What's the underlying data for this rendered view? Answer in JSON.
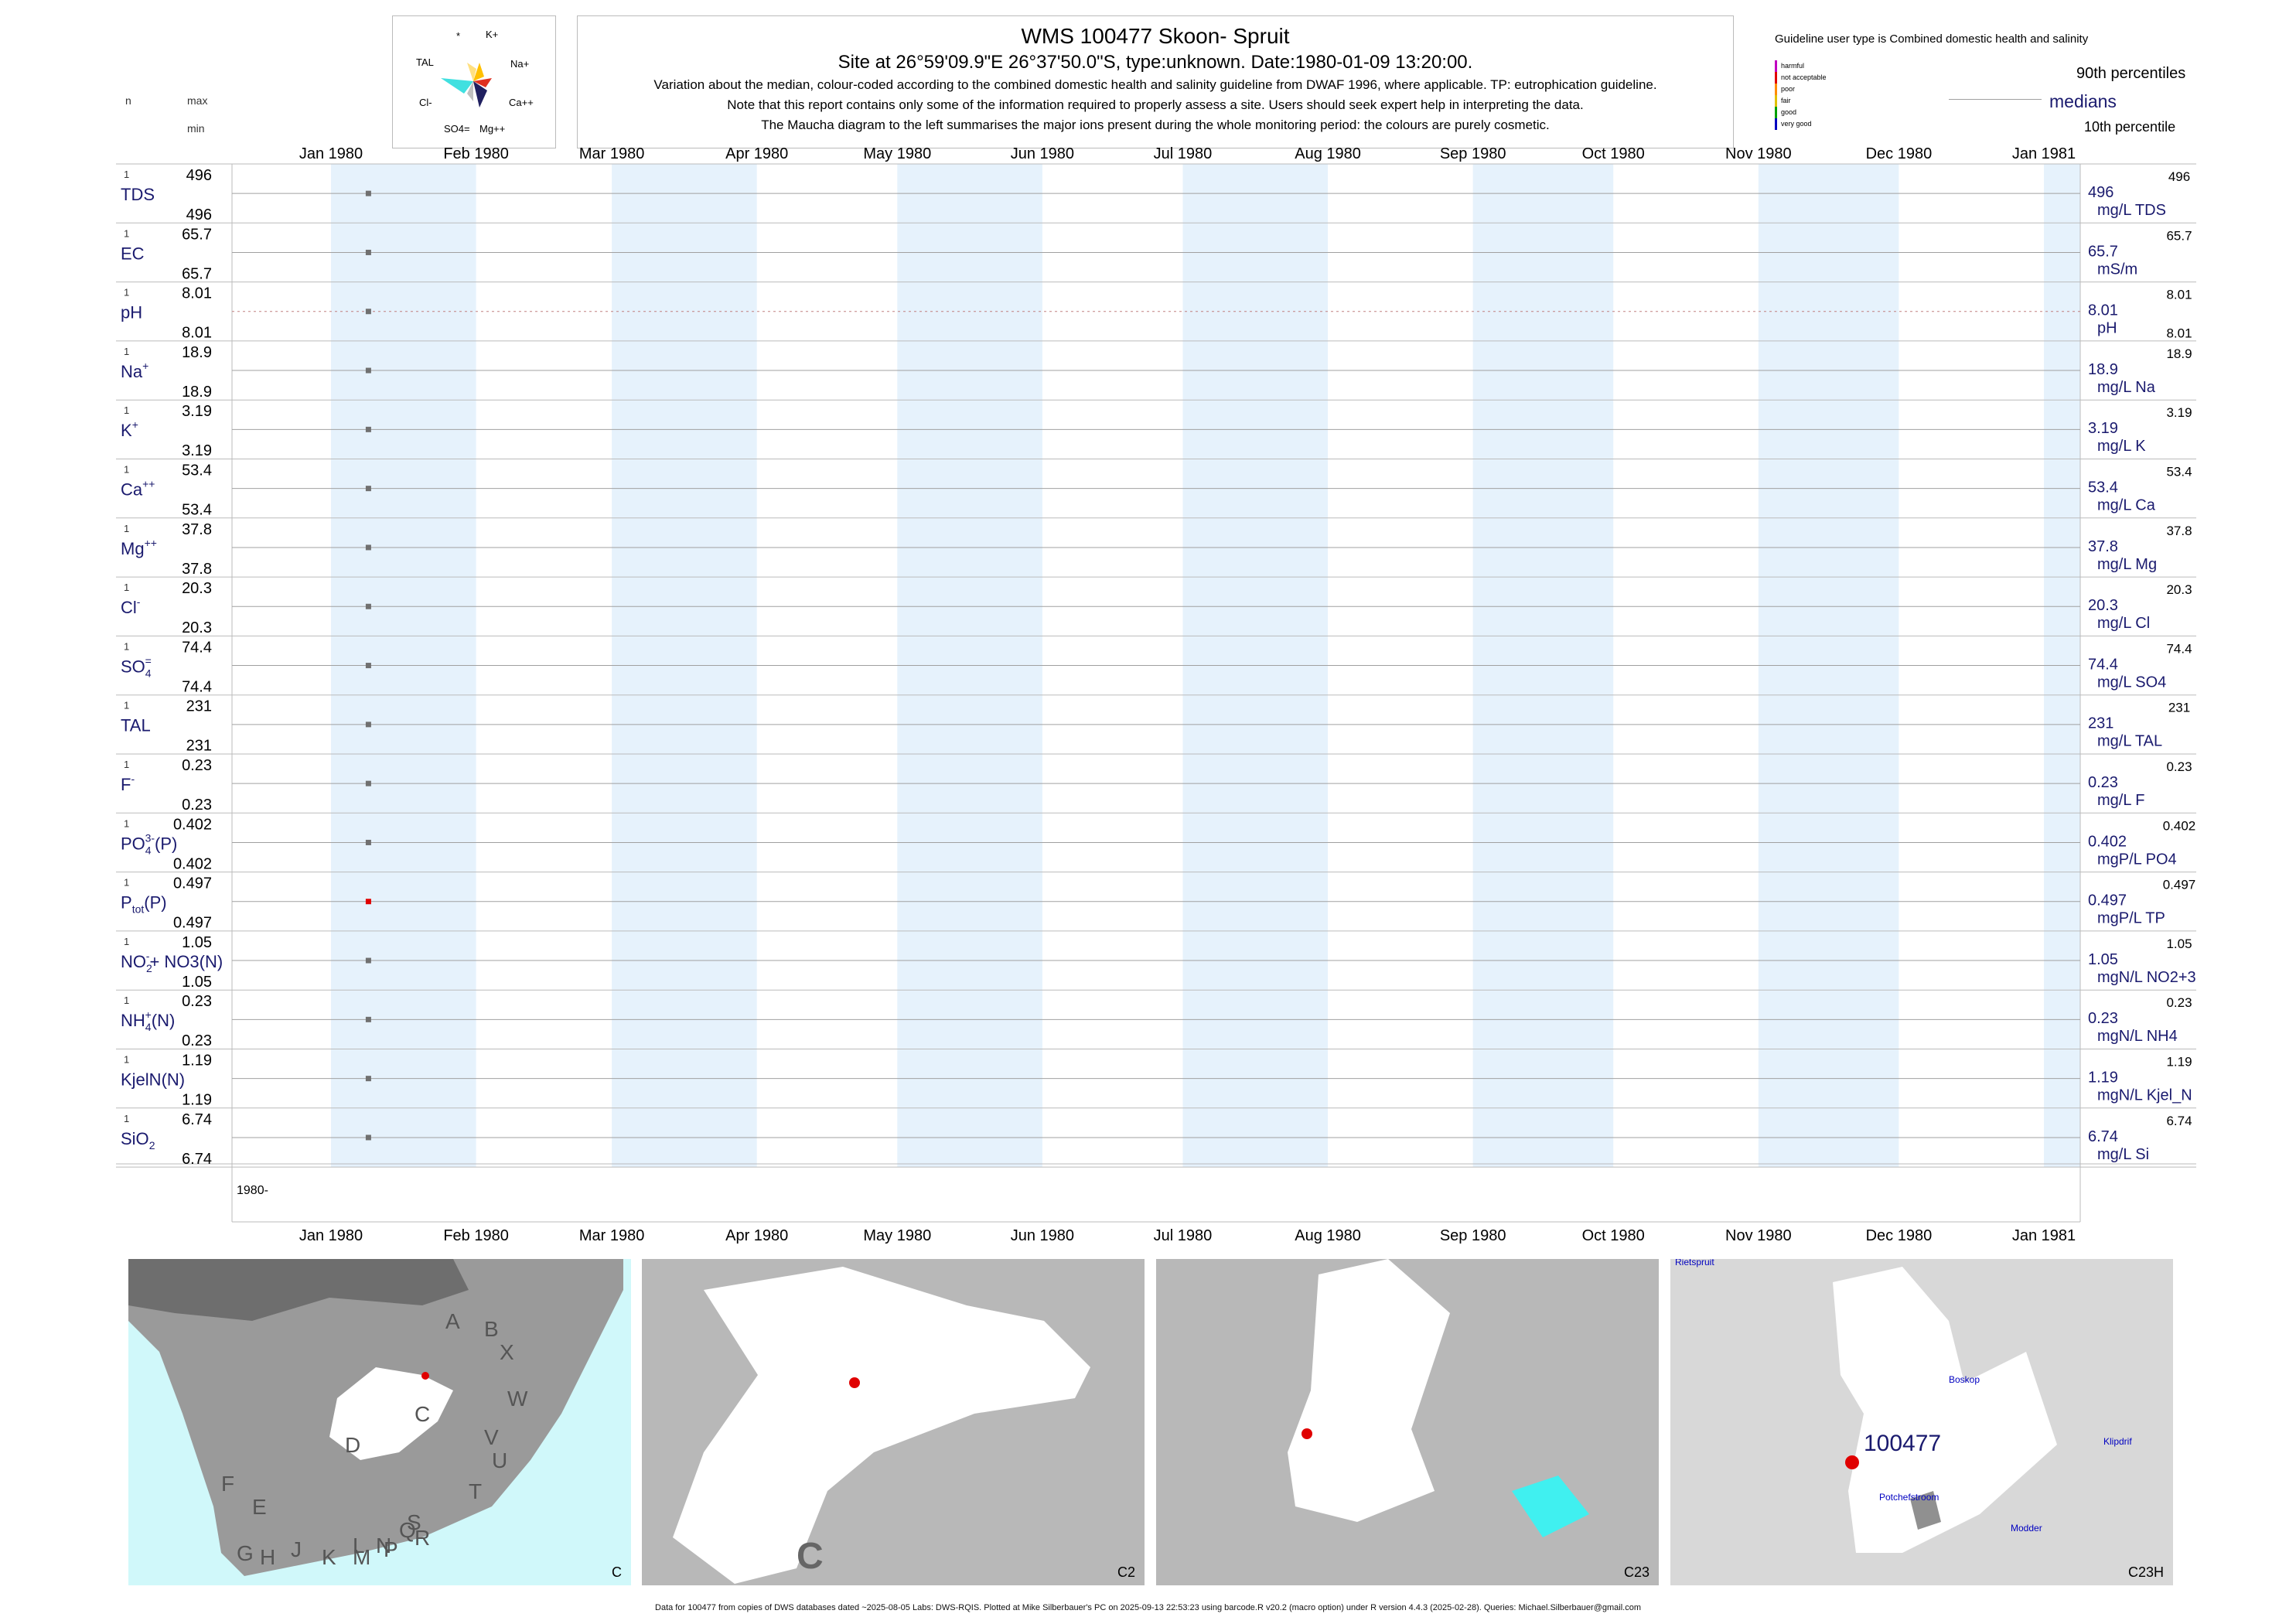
{
  "header": {
    "title": "WMS 100477  Skoon- Spruit",
    "site_line": "Site at 26°59'09.9\"E 26°37'50.0\"S, type:unknown. Date:1980-01-09 13:20:00.",
    "notes": [
      "Variation about the median,  colour-coded according to the combined domestic health and salinity guideline from DWAF 1996, where applicable. TP: eutrophication guideline.",
      "Note that this report contains only some of the information required to properly assess a site. Users should seek expert help in interpreting the data.",
      "The Maucha diagram to the left summarises the major ions present during the whole monitoring period: the colours are purely cosmetic."
    ],
    "col_n": "n",
    "col_max": "max",
    "col_min": "min"
  },
  "maucha": {
    "labels": [
      "*",
      "K+",
      "TAL",
      "Na+",
      "Cl-",
      "Ca++",
      "SO4=",
      "Mg++"
    ]
  },
  "legend": {
    "guideline_text": "Guideline user type is Combined domestic health and salinity",
    "categories": [
      "harmful",
      "not acceptable",
      "poor",
      "fair",
      "good",
      "very good"
    ],
    "category_colors": [
      "#c000c0",
      "#e00000",
      "#ff8c00",
      "#e0c000",
      "#00a000",
      "#0000c0"
    ],
    "p90": "90th percentiles",
    "medians": "medians",
    "p10": "10th percentile"
  },
  "chart_data": {
    "type": "scatter",
    "x_ticks": [
      "Jan 1980",
      "Feb 1980",
      "Mar 1980",
      "Apr 1980",
      "May 1980",
      "Jun 1980",
      "Jul 1980",
      "Aug 1980",
      "Sep 1980",
      "Oct 1980",
      "Nov 1980",
      "Dec 1980",
      "Jan 1981"
    ],
    "year_label": "1980-",
    "sample_date": "1980-01-09",
    "colors": {
      "point": "#707070",
      "point_poor": "#e00000",
      "band": "#e6f2fc",
      "median": "#a0a0a0",
      "label": "#1a1a6e"
    },
    "variables": [
      {
        "name": "TDS",
        "sup": "",
        "sub": "",
        "suffix": "",
        "n": "1",
        "max": "496",
        "min": "496",
        "value": "496",
        "unit": "mg/L TDS",
        "p90": "496",
        "p10": "",
        "color": "#707070"
      },
      {
        "name": "EC",
        "sup": "",
        "sub": "",
        "suffix": "",
        "n": "1",
        "max": "65.7",
        "min": "65.7",
        "value": "65.7",
        "unit": "mS/m",
        "p90": "65.7",
        "p10": "",
        "color": "#707070"
      },
      {
        "name": "pH",
        "sup": "",
        "sub": "",
        "suffix": "",
        "n": "1",
        "max": "8.01",
        "min": "8.01",
        "value": "8.01",
        "unit": "pH",
        "p90": "8.01",
        "p10": "8.01",
        "color": "#707070",
        "dotted": true
      },
      {
        "name": "Na",
        "sup": "+",
        "sub": "",
        "suffix": "",
        "n": "1",
        "max": "18.9",
        "min": "18.9",
        "value": "18.9",
        "unit": "mg/L Na",
        "p90": "18.9",
        "p10": "",
        "color": "#707070"
      },
      {
        "name": "K",
        "sup": "+",
        "sub": "",
        "suffix": "",
        "n": "1",
        "max": "3.19",
        "min": "3.19",
        "value": "3.19",
        "unit": "mg/L K",
        "p90": "3.19",
        "p10": "",
        "color": "#707070"
      },
      {
        "name": "Ca",
        "sup": "++",
        "sub": "",
        "suffix": "",
        "n": "1",
        "max": "53.4",
        "min": "53.4",
        "value": "53.4",
        "unit": "mg/L Ca",
        "p90": "53.4",
        "p10": "",
        "color": "#707070"
      },
      {
        "name": "Mg",
        "sup": "++",
        "sub": "",
        "suffix": "",
        "n": "1",
        "max": "37.8",
        "min": "37.8",
        "value": "37.8",
        "unit": "mg/L Mg",
        "p90": "37.8",
        "p10": "",
        "color": "#707070"
      },
      {
        "name": "Cl",
        "sup": "-",
        "sub": "",
        "suffix": "",
        "n": "1",
        "max": "20.3",
        "min": "20.3",
        "value": "20.3",
        "unit": "mg/L Cl",
        "p90": "20.3",
        "p10": "",
        "color": "#707070"
      },
      {
        "name": "SO",
        "sup": "=",
        "sub": "4",
        "suffix": "",
        "n": "1",
        "max": "74.4",
        "min": "74.4",
        "value": "74.4",
        "unit": "mg/L SO4",
        "p90": "74.4",
        "p10": "",
        "color": "#707070"
      },
      {
        "name": "TAL",
        "sup": "",
        "sub": "",
        "suffix": "",
        "n": "1",
        "max": "231",
        "min": "231",
        "value": "231",
        "unit": "mg/L TAL",
        "p90": "231",
        "p10": "",
        "color": "#707070"
      },
      {
        "name": "F",
        "sup": "-",
        "sub": "",
        "suffix": "",
        "n": "1",
        "max": "0.23",
        "min": "0.23",
        "value": "0.23",
        "unit": "mg/L F",
        "p90": "0.23",
        "p10": "",
        "color": "#707070"
      },
      {
        "name": "PO",
        "sup": "3-",
        "sub": "4",
        "suffix": "(P)",
        "n": "1",
        "max": "0.402",
        "min": "0.402",
        "value": "0.402",
        "unit": "mgP/L PO4",
        "p90": "0.402",
        "p10": "",
        "color": "#707070"
      },
      {
        "name": "P",
        "sup": "",
        "sub": "tot",
        "suffix": "(P)",
        "n": "1",
        "max": "0.497",
        "min": "0.497",
        "value": "0.497",
        "unit": "mgP/L TP",
        "p90": "0.497",
        "p10": "",
        "color": "#e00000"
      },
      {
        "name": "NO",
        "sup": "-",
        "sub": "2",
        "suffix": "+ NO3(N)",
        "n": "1",
        "max": "1.05",
        "min": "1.05",
        "value": "1.05",
        "unit": "mgN/L NO2+3",
        "p90": "1.05",
        "p10": "",
        "color": "#707070"
      },
      {
        "name": "NH",
        "sup": "+",
        "sub": "4",
        "suffix": "(N)",
        "n": "1",
        "max": "0.23",
        "min": "0.23",
        "value": "0.23",
        "unit": "mgN/L NH4",
        "p90": "0.23",
        "p10": "",
        "color": "#707070"
      },
      {
        "name": "KjelN(N)",
        "sup": "",
        "sub": "",
        "suffix": "",
        "n": "1",
        "max": "1.19",
        "min": "1.19",
        "value": "1.19",
        "unit": "mgN/L Kjel_N",
        "p90": "1.19",
        "p10": "",
        "color": "#707070"
      },
      {
        "name": "SiO",
        "sup": "",
        "sub": "2",
        "suffix": "",
        "n": "1",
        "max": "6.74",
        "min": "6.74",
        "value": "6.74",
        "unit": "mg/L Si",
        "p90": "6.74",
        "p10": "",
        "color": "#707070"
      }
    ]
  },
  "maps": {
    "panel1": {
      "label": "C",
      "regions": [
        "A",
        "B",
        "X",
        "W",
        "C",
        "D",
        "V",
        "U",
        "T",
        "F",
        "E",
        "G",
        "H",
        "J",
        "K",
        "L",
        "M",
        "N",
        "P",
        "Q",
        "R",
        "S"
      ]
    },
    "panel2": {
      "label": "C2",
      "big_letter": "C"
    },
    "panel3": {
      "label": "C23"
    },
    "panel4": {
      "label": "C23H",
      "site": "100477",
      "places": [
        "Rietspruit",
        "Boskop",
        "Klipdrif",
        "Potchefstroom",
        "Modder"
      ]
    }
  },
  "footer": "Data for 100477 from copies of DWS databases dated ~2025-08-05 Labs: DWS-RQIS. Plotted at Mike Silberbauer's PC on 2025-09-13 22:53:23 using barcode.R v20.2 (macro option) under R version 4.4.3 (2025-02-28). Queries: Michael.Silberbauer@gmail.com"
}
